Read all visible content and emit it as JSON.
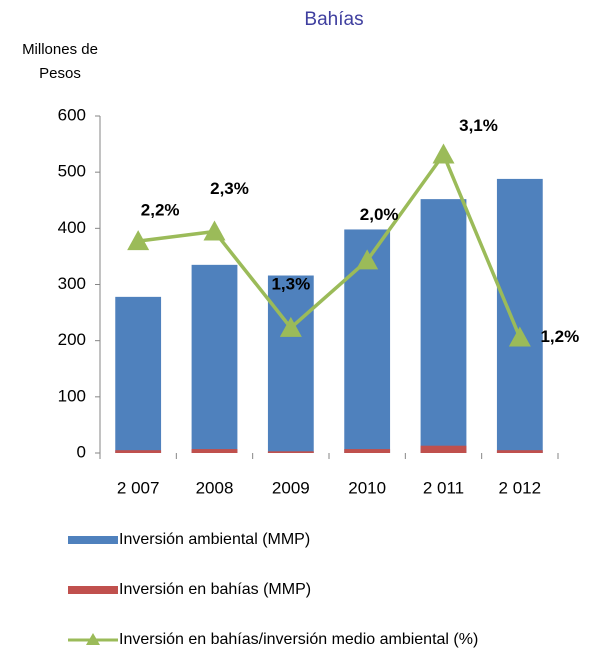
{
  "chart_data": {
    "type": "bar_line",
    "title": "Bahías",
    "y_axis_label": "Millones de Pesos",
    "categories": [
      "2 007",
      "2008",
      "2009",
      "2010",
      "2 011",
      "2 012"
    ],
    "ylim": [
      0,
      600
    ],
    "yticks": [
      0,
      100,
      200,
      300,
      400,
      500,
      600
    ],
    "y2lim": [
      0,
      3.5
    ],
    "series": [
      {
        "name": "Inversión ambiental (MMP)",
        "type": "bar",
        "color": "#4f81bd",
        "values": [
          278,
          335,
          316,
          398,
          452,
          488
        ]
      },
      {
        "name": "Inversión en bahías (MMP)",
        "type": "bar",
        "color": "#c0504d",
        "values": [
          5,
          7,
          3,
          7,
          13,
          5
        ]
      },
      {
        "name": "Inversión en bahías/inversión medio ambiental (%)",
        "type": "line",
        "axis": "y2",
        "color": "#9bbb59",
        "values": [
          2.2,
          2.3,
          1.3,
          2.0,
          3.1,
          1.2
        ],
        "value_labels": [
          "2,2%",
          "2,3%",
          "1,3%",
          "2,0%",
          "3,1%",
          "1,2%"
        ]
      }
    ]
  }
}
